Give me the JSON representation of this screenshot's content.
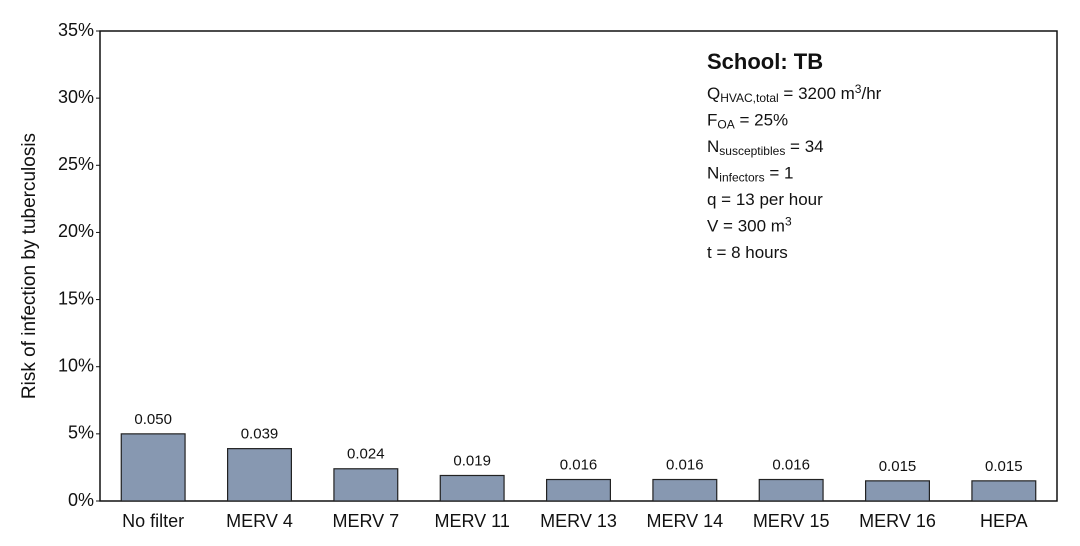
{
  "chart_data": {
    "type": "bar",
    "y_label": "Risk of infection by tuberculosis",
    "categories": [
      "No filter",
      "MERV 4",
      "MERV 7",
      "MERV 11",
      "MERV 13",
      "MERV 14",
      "MERV 15",
      "MERV 16",
      "HEPA"
    ],
    "values": [
      5.0,
      3.9,
      2.4,
      1.9,
      1.6,
      1.6,
      1.6,
      1.5,
      1.5
    ],
    "value_labels": [
      "0.050",
      "0.039",
      "0.024",
      "0.019",
      "0.016",
      "0.016",
      "0.016",
      "0.015",
      "0.015"
    ],
    "color": "#8798b1",
    "ylim": [
      0,
      35
    ],
    "yticks": [
      {
        "value": 0,
        "label": "0%"
      },
      {
        "value": 5,
        "label": "5%"
      },
      {
        "value": 10,
        "label": "10%"
      },
      {
        "value": 15,
        "label": "15%"
      },
      {
        "value": 20,
        "label": "20%"
      },
      {
        "value": 25,
        "label": "25%"
      },
      {
        "value": 30,
        "label": "30%"
      },
      {
        "value": 35,
        "label": "35%"
      }
    ],
    "grid": false,
    "annotation": {
      "title": "School: TB",
      "lines": [
        [
          {
            "text": "Q"
          },
          {
            "sub": "HVAC,total"
          },
          {
            "text": " = 3200 m"
          },
          {
            "sup": "3"
          },
          {
            "text": "/hr"
          }
        ],
        [
          {
            "text": "F"
          },
          {
            "sub": "OA"
          },
          {
            "text": " = 25%"
          }
        ],
        [
          {
            "text": "N"
          },
          {
            "sub": "susceptibles"
          },
          {
            "text": " = 34"
          }
        ],
        [
          {
            "text": "N"
          },
          {
            "sub": "infectors"
          },
          {
            "text": " = 1"
          }
        ],
        [
          {
            "text": "q = 13 per hour"
          }
        ],
        [
          {
            "text": "V = 300 m"
          },
          {
            "sup": "3"
          }
        ],
        [
          {
            "text": "t = 8 hours"
          }
        ]
      ]
    }
  }
}
